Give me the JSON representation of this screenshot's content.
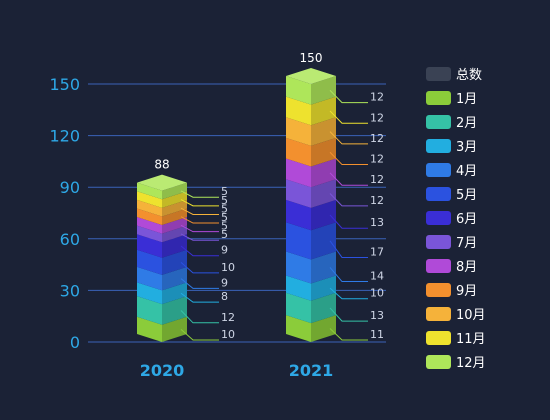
{
  "chart_data": {
    "type": "bar",
    "stacked": true,
    "categories": [
      "2020",
      "2021"
    ],
    "ylim": [
      0,
      150
    ],
    "yticks": [
      0,
      30,
      60,
      90,
      120,
      150
    ],
    "grid": true,
    "legend_position": "right",
    "total_label": "总数",
    "totals": [
      88,
      150
    ],
    "series": [
      {
        "name": "1月",
        "values": [
          10,
          11
        ],
        "color": "#8bcc3a"
      },
      {
        "name": "2月",
        "values": [
          12,
          13
        ],
        "color": "#35c2a6"
      },
      {
        "name": "3月",
        "values": [
          8,
          10
        ],
        "color": "#22aee0"
      },
      {
        "name": "4月",
        "values": [
          9,
          14
        ],
        "color": "#2f7be6"
      },
      {
        "name": "5月",
        "values": [
          10,
          17
        ],
        "color": "#2b52e0"
      },
      {
        "name": "6月",
        "values": [
          9,
          13
        ],
        "color": "#3a2ed6"
      },
      {
        "name": "7月",
        "values": [
          5,
          12
        ],
        "color": "#7a55d8"
      },
      {
        "name": "8月",
        "values": [
          5,
          12
        ],
        "color": "#b04ad8"
      },
      {
        "name": "9月",
        "values": [
          5,
          12
        ],
        "color": "#f3902e"
      },
      {
        "name": "10月",
        "values": [
          5,
          12
        ],
        "color": "#f5b23a"
      },
      {
        "name": "11月",
        "values": [
          5,
          12
        ],
        "color": "#eee22e"
      },
      {
        "name": "12月",
        "values": [
          5,
          12
        ],
        "color": "#aee65a"
      }
    ],
    "total_legend_color": "#3a4254"
  }
}
